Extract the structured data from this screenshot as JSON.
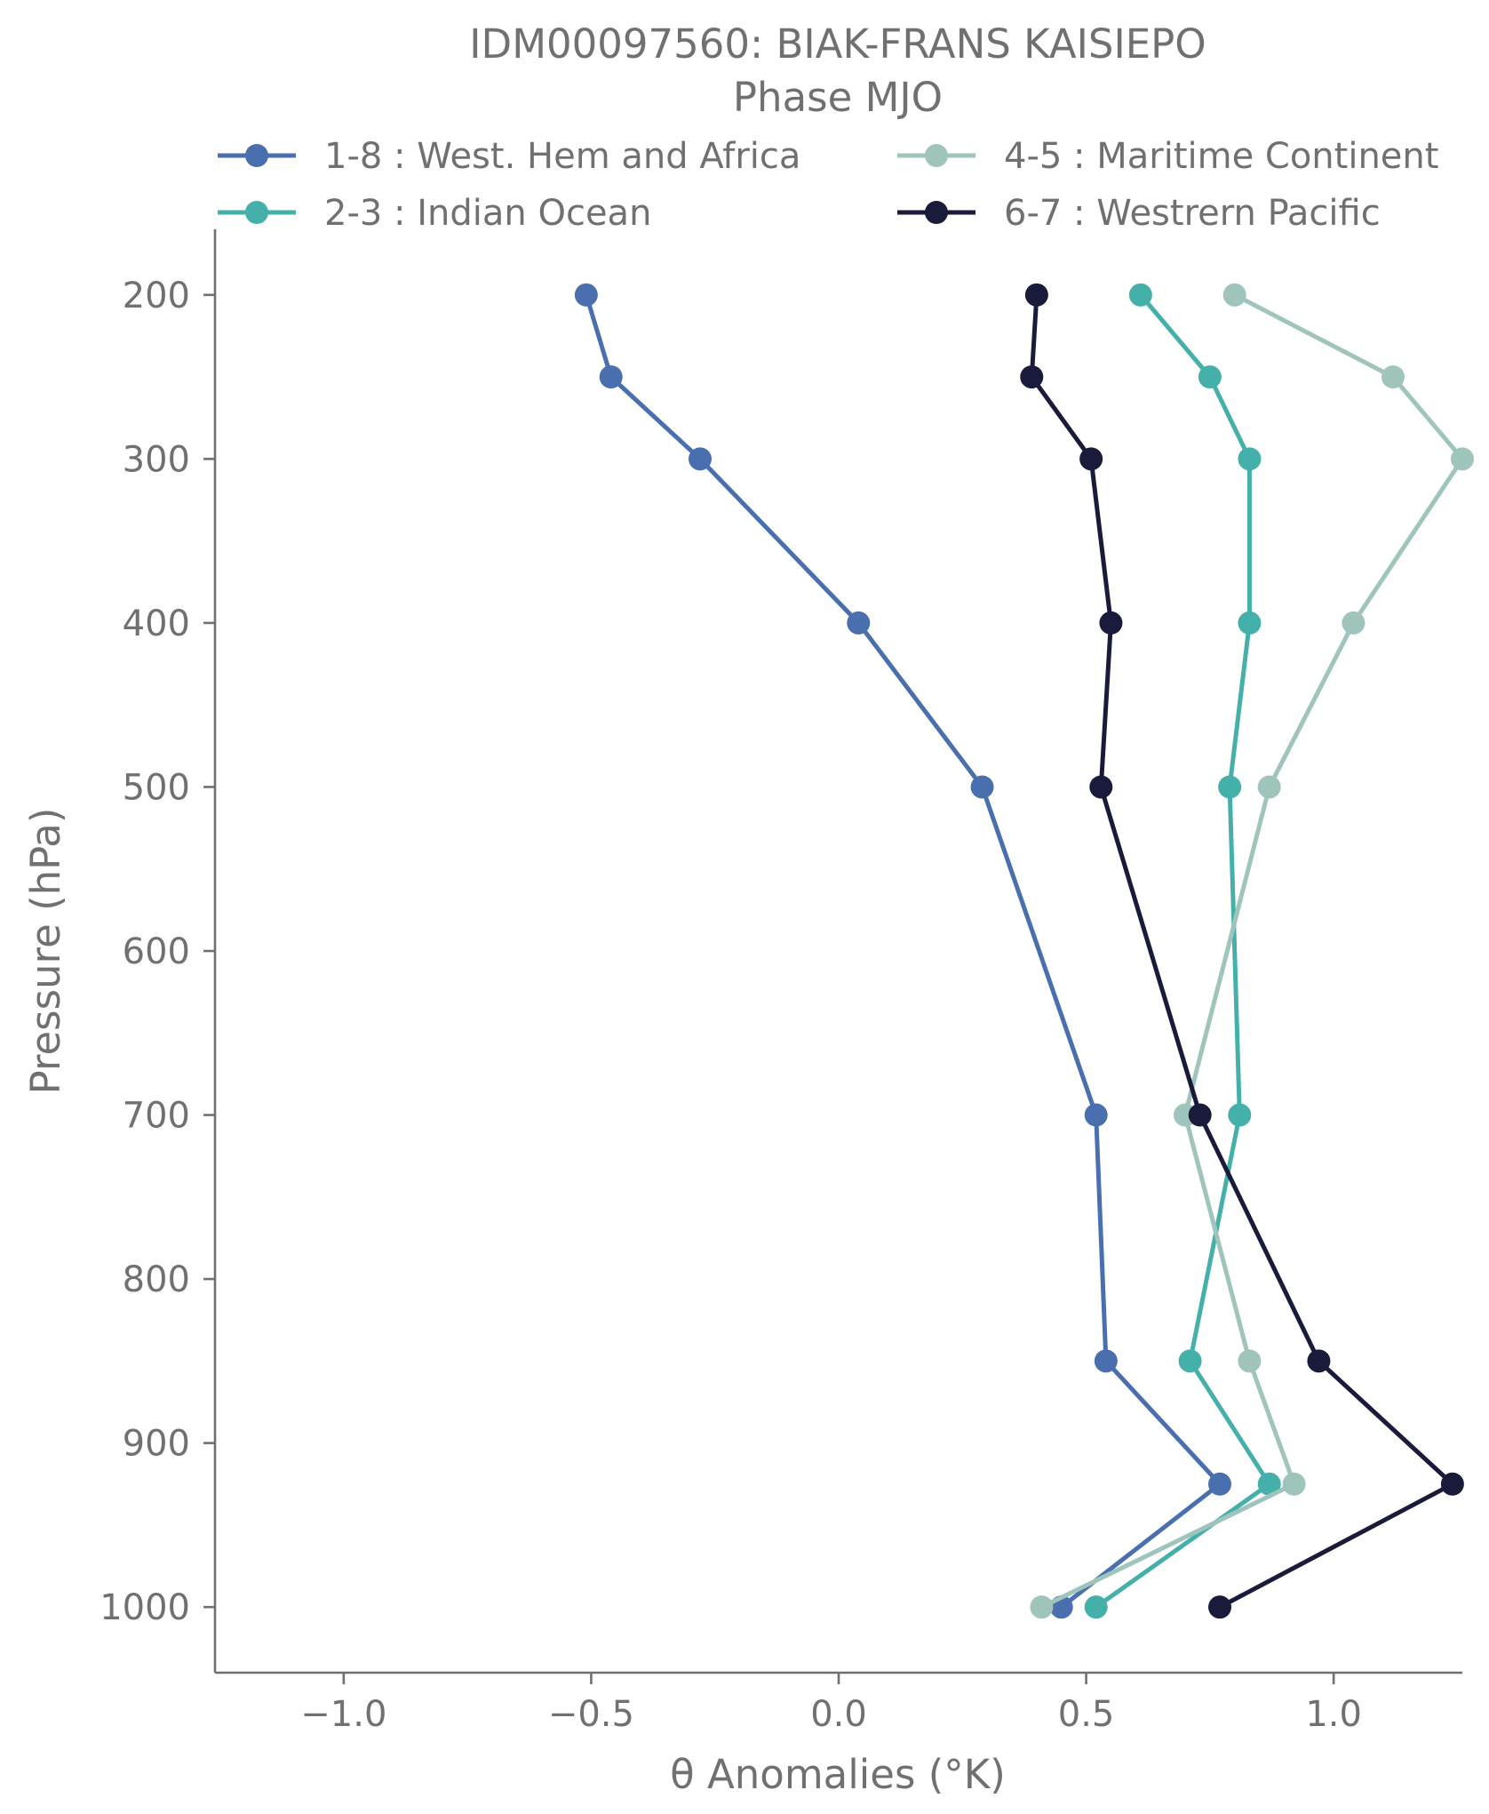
{
  "chart_data": {
    "type": "line",
    "title": "IDM00097560: BIAK-FRANS KAISIEPO",
    "subtitle": "Phase MJO",
    "xlabel": "θ Anomalies (°K)",
    "ylabel": "Pressure (hPa)",
    "xlim": [
      -1.26,
      1.26
    ],
    "ylim": [
      1040,
      160
    ],
    "y_inverted": true,
    "grid": false,
    "legend_position": "top",
    "x_ticks": [
      -1.0,
      -0.5,
      0.0,
      0.5,
      1.0
    ],
    "x_tick_labels": [
      "−1.0",
      "−0.5",
      "0.0",
      "0.5",
      "1.0"
    ],
    "y_ticks": [
      200,
      300,
      400,
      500,
      600,
      700,
      800,
      900,
      1000
    ],
    "y_tick_labels": [
      "200",
      "300",
      "400",
      "500",
      "600",
      "700",
      "800",
      "900",
      "1000"
    ],
    "pressure_levels": [
      200,
      250,
      300,
      400,
      500,
      700,
      850,
      925,
      1000
    ],
    "series": [
      {
        "name": "1-8 : West. Hem and Africa",
        "color": "#4a6fae",
        "values": [
          -0.51,
          -0.46,
          -0.28,
          0.04,
          0.29,
          0.52,
          0.54,
          0.77,
          0.45
        ]
      },
      {
        "name": "2-3 : Indian Ocean",
        "color": "#45b0aa",
        "values": [
          0.61,
          0.75,
          0.83,
          0.83,
          0.79,
          0.81,
          0.71,
          0.87,
          0.52
        ]
      },
      {
        "name": "4-5 : Maritime Continent",
        "color": "#9fc4bc",
        "values": [
          0.8,
          1.12,
          1.26,
          1.04,
          0.87,
          0.7,
          0.83,
          0.92,
          0.41
        ]
      },
      {
        "name": "6-7 : Westrern Pacific",
        "color": "#1a1a3a",
        "values": [
          0.4,
          0.39,
          0.51,
          0.55,
          0.53,
          0.73,
          0.97,
          1.24,
          0.77
        ]
      }
    ]
  }
}
